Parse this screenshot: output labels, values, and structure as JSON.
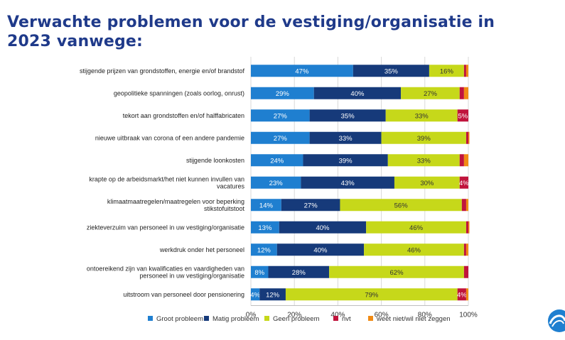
{
  "title": "Verwachte problemen voor de vestiging/organisatie in 2023 vanwege:",
  "chart_data": {
    "type": "bar",
    "orientation": "horizontal",
    "stacked": true,
    "percent_stacked": true,
    "categories": [
      [
        "stijgende prijzen van grondstoffen, energie en/of brandstof"
      ],
      [
        "geopolitieke spanningen (zoals oorlog, onrust)"
      ],
      [
        "tekort aan grondstoffen en/of halffabricaten"
      ],
      [
        "nieuwe uitbraak van corona of een andere pandemie"
      ],
      [
        "stijgende loonkosten"
      ],
      [
        "krapte op de arbeidsmarkt/het niet kunnen invullen van",
        "vacatures"
      ],
      [
        "klimaatmaatregelen/maatregelen voor beperking",
        "stikstofuitstoot"
      ],
      [
        "ziekteverzuim van personeel in uw vestiging/organisatie"
      ],
      [
        "werkdruk onder het personeel"
      ],
      [
        "ontoereikend zijn van kwalificaties en vaardigheden van",
        "personeel in uw vestiging/organisatie"
      ],
      [
        "uitstroom van personeel door pensionering"
      ]
    ],
    "series": [
      {
        "name": "Groot probleem",
        "color": "#1f7fd0",
        "values": [
          47,
          29,
          27,
          27,
          24,
          23,
          14,
          13,
          12,
          8,
          4
        ],
        "labels": [
          "47%",
          "29%",
          "27%",
          "27%",
          "24%",
          "23%",
          "14%",
          "13%",
          "12%",
          "8%",
          "4%"
        ]
      },
      {
        "name": "Matig probleem",
        "color": "#163a7a",
        "values": [
          35,
          40,
          35,
          33,
          39,
          43,
          27,
          40,
          40,
          28,
          12
        ],
        "labels": [
          "35%",
          "40%",
          "35%",
          "33%",
          "39%",
          "43%",
          "27%",
          "40%",
          "40%",
          "28%",
          "12%"
        ]
      },
      {
        "name": "Geen probleem",
        "color": "#c6d81a",
        "values": [
          16,
          27,
          33,
          39,
          33,
          30,
          56,
          46,
          46,
          62,
          79
        ],
        "labels": [
          "16%",
          "27%",
          "33%",
          "39%",
          "33%",
          "30%",
          "56%",
          "46%",
          "46%",
          "62%",
          "79%"
        ]
      },
      {
        "name": "nvt",
        "color": "#c0143c",
        "values": [
          1,
          2,
          5,
          1,
          2,
          4,
          2,
          1,
          1,
          2,
          4
        ],
        "labels": [
          "",
          "",
          "5%",
          "",
          "",
          "4%",
          "",
          "",
          "",
          "",
          "4%"
        ]
      },
      {
        "name": "weet niet/wil niet zeggen",
        "color": "#f08a14",
        "values": [
          1,
          2,
          0,
          0.5,
          2,
          0,
          1,
          0.5,
          1,
          0,
          1
        ],
        "labels": [
          "",
          "",
          "",
          "",
          "",
          "",
          "",
          "",
          "",
          "",
          ""
        ]
      }
    ],
    "xlim": [
      0,
      100
    ],
    "x_ticks": [
      "0%",
      "20%",
      "40%",
      "60%",
      "80%",
      "100%"
    ],
    "grid": true,
    "legend_position": "bottom"
  }
}
